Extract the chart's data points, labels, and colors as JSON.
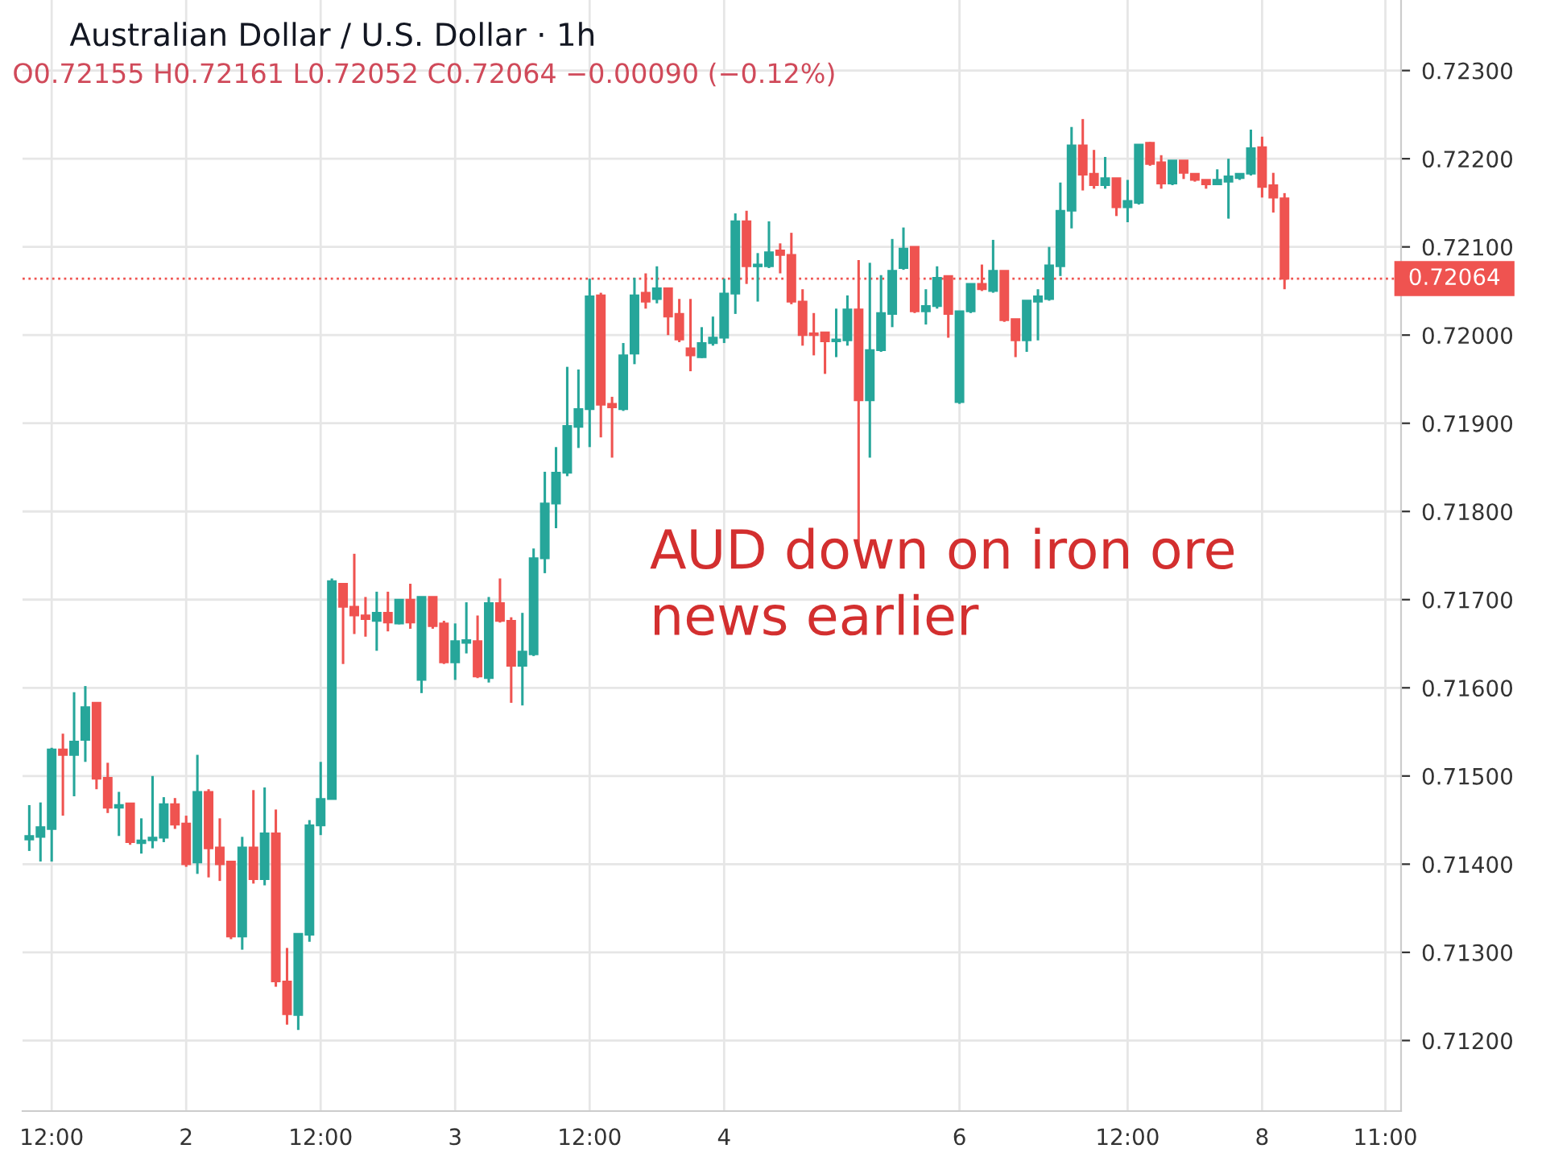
{
  "chart_data": {
    "type": "candlestick",
    "title": "Australian Dollar / U.S. Dollar · 1h",
    "subtitle": "O0.72155 H0.72161 L0.72052 C0.72064 −0.00090 (−0.12%)",
    "annotations": [
      "AUD down on iron ore\nnews earlier"
    ],
    "categories": [
      null,
      null,
      "12:00",
      null,
      null,
      null,
      null,
      null,
      null,
      null,
      null,
      null,
      null,
      null,
      "2",
      null,
      null,
      null,
      null,
      null,
      null,
      null,
      null,
      null,
      null,
      null,
      "12:00",
      null,
      null,
      null,
      null,
      null,
      null,
      null,
      null,
      null,
      null,
      null,
      "3",
      null,
      null,
      null,
      null,
      null,
      null,
      null,
      null,
      null,
      null,
      null,
      "12:00",
      null,
      null,
      null,
      null,
      null,
      null,
      null,
      null,
      null,
      null,
      null,
      "4",
      null,
      null,
      null,
      null,
      null,
      null,
      null,
      null,
      null,
      null,
      null,
      null,
      null,
      null,
      null,
      null,
      null,
      null,
      null,
      null,
      "6",
      null,
      null,
      null,
      null,
      null,
      null,
      null,
      null,
      null,
      null,
      null,
      null,
      null,
      null,
      "12:00",
      null,
      null,
      null,
      null,
      null,
      null,
      null,
      null,
      null,
      null,
      null,
      "8",
      null,
      null,
      null,
      null,
      null,
      null,
      null,
      null,
      null,
      null,
      "11:00"
    ],
    "ohlc": [
      [
        0.71428,
        0.71467,
        0.71415,
        0.71432
      ],
      [
        0.71431,
        0.7147,
        0.71403,
        0.71442
      ],
      [
        0.7144,
        0.71532,
        0.71403,
        0.7153
      ],
      [
        0.7153,
        0.71548,
        0.71455,
        0.71524
      ],
      [
        0.71524,
        0.71595,
        0.71477,
        0.71539
      ],
      [
        0.71541,
        0.71602,
        0.71516,
        0.71578
      ],
      [
        0.71583,
        0.71583,
        0.71485,
        0.71497
      ],
      [
        0.71498,
        0.71515,
        0.71458,
        0.71464
      ],
      [
        0.71464,
        0.71482,
        0.71432,
        0.71467
      ],
      [
        0.71469,
        0.71469,
        0.71422,
        0.71425
      ],
      [
        0.71424,
        0.71452,
        0.71412,
        0.71427
      ],
      [
        0.71427,
        0.715,
        0.71418,
        0.7143
      ],
      [
        0.7143,
        0.71476,
        0.71425,
        0.71468
      ],
      [
        0.71468,
        0.71475,
        0.7144,
        0.71445
      ],
      [
        0.71446,
        0.71455,
        0.71397,
        0.714
      ],
      [
        0.71402,
        0.71524,
        0.71389,
        0.71482
      ],
      [
        0.71482,
        0.71485,
        0.71385,
        0.71418
      ],
      [
        0.71419,
        0.71452,
        0.71381,
        0.714
      ],
      [
        0.71403,
        0.71403,
        0.71315,
        0.71318
      ],
      [
        0.71318,
        0.71431,
        0.71303,
        0.71419
      ],
      [
        0.71419,
        0.71484,
        0.71378,
        0.71383
      ],
      [
        0.71383,
        0.71487,
        0.71376,
        0.71435
      ],
      [
        0.71435,
        0.71462,
        0.71261,
        0.71267
      ],
      [
        0.71267,
        0.71305,
        0.71218,
        0.7123
      ],
      [
        0.71229,
        0.71321,
        0.71212,
        0.71321
      ],
      [
        0.7132,
        0.7145,
        0.71312,
        0.71444
      ],
      [
        0.71444,
        0.71516,
        0.71433,
        0.71474
      ],
      [
        0.71474,
        0.71724,
        0.71474,
        0.71721
      ],
      [
        0.71718,
        0.71718,
        0.71627,
        0.71692
      ],
      [
        0.71692,
        0.71752,
        0.71661,
        0.71682
      ],
      [
        0.71682,
        0.71703,
        0.71658,
        0.71678
      ],
      [
        0.71676,
        0.71709,
        0.71642,
        0.71685
      ],
      [
        0.71685,
        0.71709,
        0.71664,
        0.71674
      ],
      [
        0.71673,
        0.717,
        0.71672,
        0.717
      ],
      [
        0.717,
        0.71718,
        0.71667,
        0.71674
      ],
      [
        0.71609,
        0.71703,
        0.71594,
        0.71703
      ],
      [
        0.71703,
        0.71703,
        0.71667,
        0.7167
      ],
      [
        0.71673,
        0.71676,
        0.71627,
        0.71629
      ],
      [
        0.71629,
        0.71673,
        0.71609,
        0.71653
      ],
      [
        0.71651,
        0.71697,
        0.71639,
        0.71654
      ],
      [
        0.71653,
        0.71682,
        0.71611,
        0.71613
      ],
      [
        0.71611,
        0.71703,
        0.71606,
        0.71696
      ],
      [
        0.71696,
        0.71724,
        0.71674,
        0.71676
      ],
      [
        0.71676,
        0.7168,
        0.71583,
        0.71625
      ],
      [
        0.71625,
        0.71685,
        0.7158,
        0.71641
      ],
      [
        0.71638,
        0.71758,
        0.71636,
        0.71747
      ],
      [
        0.71747,
        0.71845,
        0.7173,
        0.71809
      ],
      [
        0.71809,
        0.71873,
        0.71781,
        0.71844
      ],
      [
        0.71844,
        0.71964,
        0.7184,
        0.71897
      ],
      [
        0.71896,
        0.71961,
        0.71872,
        0.71916
      ],
      [
        0.71916,
        0.72064,
        0.71873,
        0.72044
      ],
      [
        0.72045,
        0.72048,
        0.71884,
        0.71921
      ],
      [
        0.71922,
        0.7193,
        0.71861,
        0.71918
      ],
      [
        0.71916,
        0.71991,
        0.71914,
        0.71977
      ],
      [
        0.71979,
        0.72065,
        0.71967,
        0.72045
      ],
      [
        0.72048,
        0.7207,
        0.7203,
        0.72038
      ],
      [
        0.72041,
        0.72078,
        0.72036,
        0.72053
      ],
      [
        0.72053,
        0.72053,
        0.72,
        0.72021
      ],
      [
        0.72024,
        0.72041,
        0.71992,
        0.71995
      ],
      [
        0.71985,
        0.72041,
        0.71959,
        0.71977
      ],
      [
        0.71975,
        0.72009,
        0.71974,
        0.71991
      ],
      [
        0.71991,
        0.72021,
        0.71988,
        0.71997
      ],
      [
        0.71997,
        0.72064,
        0.71991,
        0.72047
      ],
      [
        0.72047,
        0.72138,
        0.72024,
        0.72129
      ],
      [
        0.72129,
        0.72141,
        0.72058,
        0.72078
      ],
      [
        0.72078,
        0.72093,
        0.72038,
        0.7208
      ],
      [
        0.72078,
        0.72129,
        0.72076,
        0.72094
      ],
      [
        0.72096,
        0.72104,
        0.7207,
        0.72091
      ],
      [
        0.72091,
        0.72116,
        0.72035,
        0.72038
      ],
      [
        0.72038,
        0.72052,
        0.71988,
        0.72
      ],
      [
        0.72002,
        0.72025,
        0.71977,
        0.72
      ],
      [
        0.72003,
        0.72003,
        0.71956,
        0.71993
      ],
      [
        0.71993,
        0.7203,
        0.71975,
        0.71995
      ],
      [
        0.71994,
        0.72045,
        0.71988,
        0.72029
      ],
      [
        0.72029,
        0.72085,
        0.71757,
        0.71926
      ],
      [
        0.71926,
        0.72082,
        0.71861,
        0.71983
      ],
      [
        0.71983,
        0.72068,
        0.71981,
        0.72025
      ],
      [
        0.72024,
        0.72109,
        0.72009,
        0.72073
      ],
      [
        0.72076,
        0.72122,
        0.72074,
        0.72098
      ],
      [
        0.721,
        0.721,
        0.72025,
        0.72027
      ],
      [
        0.72027,
        0.72052,
        0.72012,
        0.72033
      ],
      [
        0.72033,
        0.72078,
        0.7203,
        0.72065
      ],
      [
        0.72067,
        0.72067,
        0.71997,
        0.72024
      ],
      [
        0.71924,
        0.72027,
        0.71922,
        0.72027
      ],
      [
        0.72027,
        0.72058,
        0.72025,
        0.72058
      ],
      [
        0.72058,
        0.7208,
        0.7205,
        0.72052
      ],
      [
        0.7205,
        0.72108,
        0.72048,
        0.72073
      ],
      [
        0.72073,
        0.72073,
        0.72015,
        0.72017
      ],
      [
        0.72018,
        0.72018,
        0.71975,
        0.71994
      ],
      [
        0.71994,
        0.72039,
        0.71981,
        0.72039
      ],
      [
        0.72038,
        0.72052,
        0.71994,
        0.72044
      ],
      [
        0.72041,
        0.721,
        0.72039,
        0.72079
      ],
      [
        0.72078,
        0.72173,
        0.72067,
        0.72141
      ],
      [
        0.72141,
        0.72236,
        0.72121,
        0.72215
      ],
      [
        0.72215,
        0.72245,
        0.72164,
        0.72182
      ],
      [
        0.72183,
        0.7221,
        0.72166,
        0.7217
      ],
      [
        0.7217,
        0.72202,
        0.72166,
        0.72178
      ],
      [
        0.72178,
        0.72178,
        0.72135,
        0.72145
      ],
      [
        0.72145,
        0.72176,
        0.72128,
        0.72152
      ],
      [
        0.7215,
        0.72216,
        0.72148,
        0.72216
      ],
      [
        0.72218,
        0.72219,
        0.72192,
        0.72194
      ],
      [
        0.72196,
        0.72204,
        0.72166,
        0.72172
      ],
      [
        0.72172,
        0.72198,
        0.7217,
        0.72198
      ],
      [
        0.72198,
        0.72198,
        0.72177,
        0.72184
      ],
      [
        0.72183,
        0.72183,
        0.72174,
        0.72176
      ],
      [
        0.72176,
        0.72176,
        0.72166,
        0.72171
      ],
      [
        0.72171,
        0.72188,
        0.7217,
        0.72176
      ],
      [
        0.72174,
        0.722,
        0.72132,
        0.7218
      ],
      [
        0.72178,
        0.72183,
        0.72176,
        0.72183
      ],
      [
        0.72183,
        0.72233,
        0.72181,
        0.72212
      ],
      [
        0.72213,
        0.72225,
        0.72156,
        0.72168
      ],
      [
        0.7217,
        0.72184,
        0.72139,
        0.72156
      ],
      [
        0.72155,
        0.72161,
        0.72052,
        0.72064
      ],
      null,
      null,
      null,
      null,
      null,
      null,
      null,
      null,
      null
    ],
    "colors": [
      "#26a69a",
      "#26a69a",
      "#26a69a",
      "#ef5350",
      "#26a69a",
      "#26a69a",
      "#ef5350",
      "#ef5350",
      "#26a69a",
      "#ef5350",
      "#26a69a",
      "#26a69a",
      "#26a69a",
      "#ef5350",
      "#ef5350",
      "#26a69a",
      "#ef5350",
      "#ef5350",
      "#ef5350",
      "#26a69a",
      "#ef5350",
      "#26a69a",
      "#ef5350",
      "#ef5350",
      "#26a69a",
      "#26a69a",
      "#26a69a",
      "#26a69a",
      "#ef5350",
      "#ef5350",
      "#ef5350",
      "#26a69a",
      "#ef5350",
      "#26a69a",
      "#ef5350",
      "#26a69a",
      "#ef5350",
      "#ef5350",
      "#26a69a",
      "#26a69a",
      "#ef5350",
      "#26a69a",
      "#ef5350",
      "#ef5350",
      "#26a69a",
      "#26a69a",
      "#26a69a",
      "#26a69a",
      "#26a69a",
      "#26a69a",
      "#26a69a",
      "#ef5350",
      "#ef5350",
      "#26a69a",
      "#26a69a",
      "#ef5350",
      "#26a69a",
      "#ef5350",
      "#ef5350",
      "#ef5350",
      "#26a69a",
      "#26a69a",
      "#26a69a",
      "#26a69a",
      "#ef5350",
      "#26a69a",
      "#26a69a",
      "#ef5350",
      "#ef5350",
      "#ef5350",
      "#ef5350",
      "#ef5350",
      "#26a69a",
      "#26a69a",
      "#ef5350",
      "#26a69a",
      "#26a69a",
      "#26a69a",
      "#26a69a",
      "#ef5350",
      "#26a69a",
      "#26a69a",
      "#ef5350",
      "#26a69a",
      "#26a69a",
      "#ef5350",
      "#26a69a",
      "#ef5350",
      "#ef5350",
      "#26a69a",
      "#26a69a",
      "#26a69a",
      "#26a69a",
      "#26a69a",
      "#ef5350",
      "#ef5350",
      "#26a69a",
      "#ef5350",
      "#26a69a",
      "#26a69a",
      "#ef5350",
      "#ef5350",
      "#26a69a",
      "#ef5350",
      "#ef5350",
      "#ef5350",
      "#26a69a",
      "#26a69a",
      "#26a69a",
      "#26a69a",
      "#ef5350",
      "#ef5350",
      "#ef5350",
      null,
      null,
      null,
      null,
      null,
      null,
      null,
      null,
      null
    ],
    "ylim": [
      0.7112,
      0.7238
    ],
    "yticks": [
      {
        "value": 0.712,
        "label": "0.71200"
      },
      {
        "value": 0.713,
        "label": "0.71300"
      },
      {
        "value": 0.714,
        "label": "0.71400"
      },
      {
        "value": 0.715,
        "label": "0.71500"
      },
      {
        "value": 0.716,
        "label": "0.71600"
      },
      {
        "value": 0.717,
        "label": "0.71700"
      },
      {
        "value": 0.718,
        "label": "0.71800"
      },
      {
        "value": 0.719,
        "label": "0.71900"
      },
      {
        "value": 0.72,
        "label": "0.72000"
      },
      {
        "value": 0.721,
        "label": "0.72100"
      },
      {
        "value": 0.722,
        "label": "0.72200"
      },
      {
        "value": 0.723,
        "label": "0.72300"
      }
    ],
    "ref_lines": [
      {
        "axis": "y",
        "value": 0.72064,
        "label": "0.72064",
        "color": "#ef5350",
        "line_style": "dotted"
      }
    ],
    "grid": true
  }
}
